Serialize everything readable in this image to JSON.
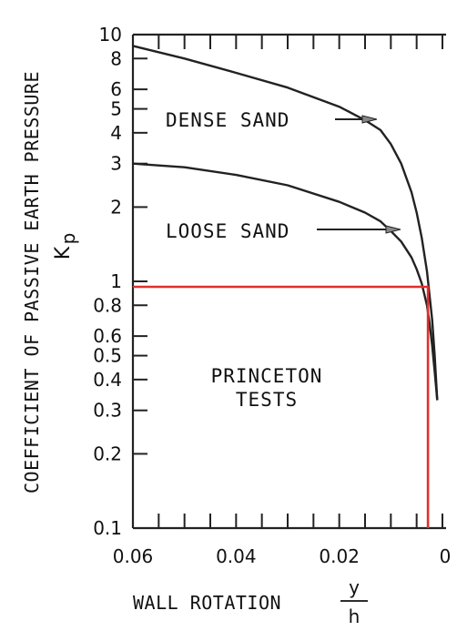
{
  "chart_data": {
    "type": "line",
    "title": "",
    "ylabel": "COEFFICIENT OF PASSIVE EARTH PRESSURE",
    "ylabel_symbol": "K",
    "ylabel_symbol_sub": "p",
    "xlabel": "WALL ROTATION",
    "xlabel_frac_num": "y",
    "xlabel_frac_den": "h",
    "x_scale": "linear",
    "y_scale": "log",
    "xlim": [
      0.06,
      0
    ],
    "ylim": [
      0.1,
      10
    ],
    "x_ticks": [
      {
        "value": 0.06,
        "label": "0.06"
      },
      {
        "value": 0.04,
        "label": "0.04"
      },
      {
        "value": 0.02,
        "label": "0.02"
      },
      {
        "value": 0,
        "label": "0"
      }
    ],
    "y_ticks": [
      {
        "value": 10,
        "label": "10"
      },
      {
        "value": 8,
        "label": "8"
      },
      {
        "value": 6,
        "label": "6"
      },
      {
        "value": 5,
        "label": "5"
      },
      {
        "value": 4,
        "label": "4"
      },
      {
        "value": 3,
        "label": "3"
      },
      {
        "value": 2,
        "label": "2"
      },
      {
        "value": 1,
        "label": "1"
      },
      {
        "value": 0.8,
        "label": "0.8"
      },
      {
        "value": 0.6,
        "label": "0.6"
      },
      {
        "value": 0.5,
        "label": "0.5"
      },
      {
        "value": 0.4,
        "label": "0.4"
      },
      {
        "value": 0.3,
        "label": "0.3"
      },
      {
        "value": 0.2,
        "label": "0.2"
      },
      {
        "value": 0.1,
        "label": "0.1"
      }
    ],
    "series": [
      {
        "name": "DENSE SAND",
        "color": "#222222",
        "x": [
          0.06,
          0.05,
          0.04,
          0.03,
          0.02,
          0.015,
          0.012,
          0.01,
          0.008,
          0.006,
          0.005,
          0.004,
          0.003,
          0.002,
          0.0015,
          0.001
        ],
        "y": [
          9.0,
          8.0,
          7.0,
          6.1,
          5.1,
          4.5,
          4.1,
          3.6,
          3.0,
          2.3,
          1.9,
          1.5,
          1.1,
          0.7,
          0.5,
          0.33
        ]
      },
      {
        "name": "LOOSE SAND",
        "color": "#222222",
        "x": [
          0.06,
          0.05,
          0.04,
          0.03,
          0.02,
          0.015,
          0.012,
          0.01,
          0.008,
          0.006,
          0.005,
          0.004,
          0.003,
          0.0025,
          0.002,
          0.0015,
          0.001
        ],
        "y": [
          3.0,
          2.9,
          2.7,
          2.45,
          2.1,
          1.9,
          1.75,
          1.6,
          1.45,
          1.25,
          1.12,
          0.98,
          0.8,
          0.68,
          0.55,
          0.43,
          0.33
        ]
      },
      {
        "name": "PRINCETON TESTS",
        "color": "#e0302c",
        "x": [
          0.06,
          0.0028,
          0.0028
        ],
        "y": [
          0.95,
          0.95,
          0.1
        ]
      }
    ],
    "annotations": {
      "dense": "DENSE SAND",
      "loose": "LOOSE SAND",
      "princeton_line1": "PRINCETON",
      "princeton_line2": "TESTS"
    },
    "grid": false,
    "legend": "none"
  }
}
